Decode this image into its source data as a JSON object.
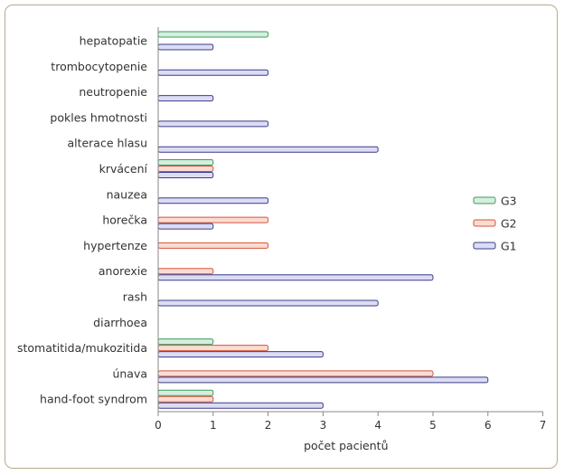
{
  "chart_data": {
    "type": "bar",
    "orientation": "horizontal",
    "title": "",
    "xlabel": "počet pacientů",
    "ylabel": "",
    "xlim": [
      0,
      7
    ],
    "xticks": [
      "0",
      "1",
      "2",
      "3",
      "4",
      "5",
      "6",
      "7"
    ],
    "grid": false,
    "legend_position": "right",
    "categories": [
      "hepatopatie",
      "trombocytopenie",
      "neutropenie",
      "pokles hmotnosti",
      "alterace hlasu",
      "krvácení",
      "nauzea",
      "horečka",
      "hypertenze",
      "anorexie",
      "rash",
      "diarrhoea",
      "stomatitida/mukozitida",
      "únava",
      "hand-foot syndrom"
    ],
    "series": [
      {
        "name": "G3",
        "color": "#d6eede",
        "stroke": "#3f9a63",
        "values": [
          2,
          0,
          0,
          0,
          0,
          1,
          0,
          0,
          0,
          0,
          0,
          0,
          1,
          0,
          1
        ]
      },
      {
        "name": "G2",
        "color": "#fbdcd3",
        "stroke": "#d4553a",
        "values": [
          0,
          0,
          0,
          0,
          0,
          1,
          0,
          2,
          2,
          1,
          0,
          0,
          2,
          5,
          1
        ]
      },
      {
        "name": "G1",
        "color": "#dcdcf4",
        "stroke": "#3c3c86",
        "values": [
          1,
          2,
          1,
          2,
          4,
          1,
          2,
          1,
          0,
          5,
          4,
          0,
          3,
          6,
          3
        ]
      }
    ],
    "legend_order": [
      "G3",
      "G2",
      "G1"
    ]
  }
}
